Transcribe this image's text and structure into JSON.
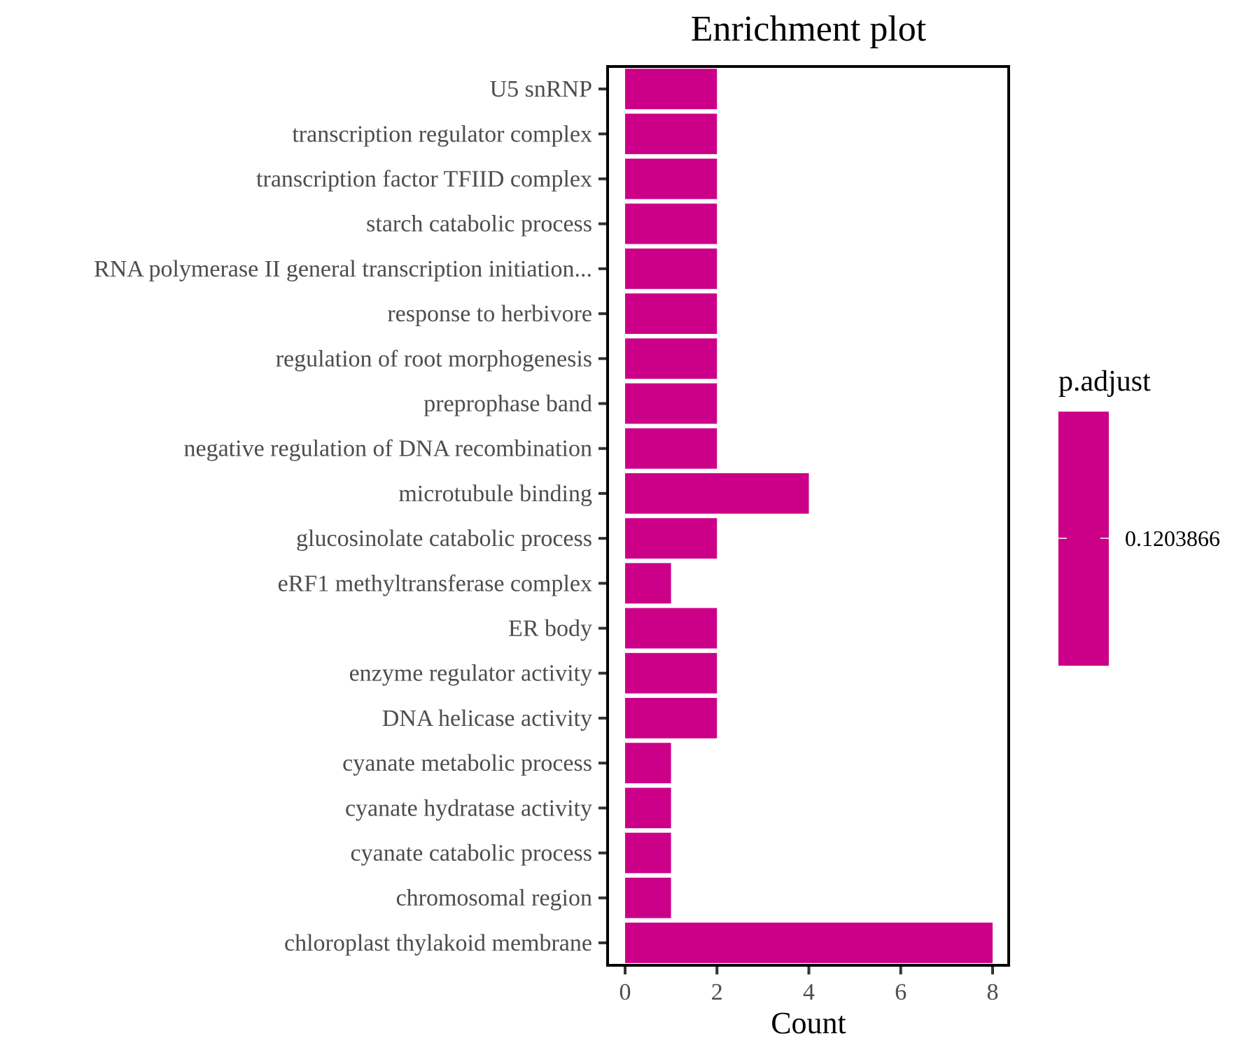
{
  "chart_data": {
    "type": "bar",
    "orientation": "horizontal",
    "title": "Enrichment plot",
    "xlabel": "Count",
    "ylabel": "",
    "xlim": [
      0,
      8.4
    ],
    "xticks": [
      "0",
      "2",
      "4",
      "6",
      "8"
    ],
    "categories": [
      "U5 snRNP",
      "transcription regulator complex",
      "transcription factor TFIID complex",
      "starch catabolic process",
      "RNA polymerase II general transcription initiation...",
      "response to herbivore",
      "regulation of root morphogenesis",
      "preprophase band",
      "negative regulation of DNA recombination",
      "microtubule binding",
      "glucosinolate catabolic process",
      "eRF1 methyltransferase complex",
      "ER body",
      "enzyme regulator activity",
      "DNA helicase activity",
      "cyanate metabolic process",
      "cyanate hydratase activity",
      "cyanate catabolic process",
      "chromosomal region",
      "chloroplast thylakoid membrane"
    ],
    "values": [
      2,
      2,
      2,
      2,
      2,
      2,
      2,
      2,
      2,
      4,
      2,
      1,
      2,
      2,
      2,
      1,
      1,
      1,
      1,
      8
    ],
    "bar_color": "#cc0088",
    "grid": false,
    "legend": {
      "title": "p.adjust",
      "label": "0.1203866",
      "color": "#cc0088",
      "position": "right"
    }
  }
}
